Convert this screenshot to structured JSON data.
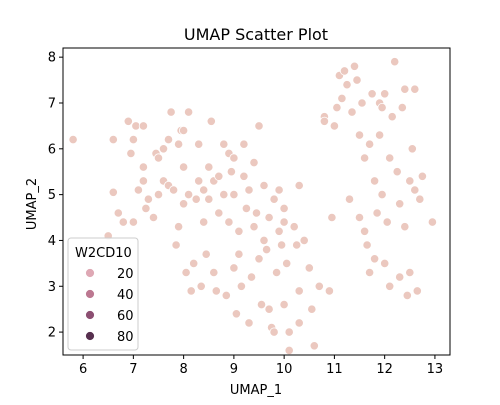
{
  "chart_data": {
    "type": "scatter",
    "title": "UMAP Scatter Plot",
    "xlabel": "UMAP_1",
    "ylabel": "UMAP_2",
    "xlim": [
      5.6,
      13.3
    ],
    "ylim": [
      1.5,
      8.2
    ],
    "xticks": [
      6,
      7,
      8,
      9,
      10,
      11,
      12,
      13
    ],
    "yticks": [
      2,
      3,
      4,
      5,
      6,
      7,
      8
    ],
    "grid": false,
    "legend": {
      "title": "W2CD10",
      "placement": "lower-left",
      "entries": [
        {
          "label": "20",
          "color": "#dea8b4"
        },
        {
          "label": "40",
          "color": "#bc7891"
        },
        {
          "label": "60",
          "color": "#8c4f72"
        },
        {
          "label": "80",
          "color": "#57304f"
        }
      ]
    },
    "point_color": "#ebc8bf",
    "point_edge_color": "#ffffff",
    "points": [
      [
        5.8,
        6.2
      ],
      [
        6.5,
        4.1
      ],
      [
        6.6,
        5.05
      ],
      [
        6.6,
        6.2
      ],
      [
        6.7,
        4.6
      ],
      [
        6.8,
        4.4
      ],
      [
        6.9,
        6.6
      ],
      [
        6.95,
        5.9
      ],
      [
        7.0,
        6.2
      ],
      [
        7.0,
        4.4
      ],
      [
        7.05,
        6.5
      ],
      [
        7.1,
        5.1
      ],
      [
        7.2,
        5.3
      ],
      [
        7.2,
        5.6
      ],
      [
        7.2,
        6.5
      ],
      [
        7.25,
        4.7
      ],
      [
        7.3,
        4.9
      ],
      [
        7.4,
        4.5
      ],
      [
        7.45,
        5.9
      ],
      [
        7.5,
        5.0
      ],
      [
        7.5,
        5.8
      ],
      [
        7.6,
        5.3
      ],
      [
        7.6,
        6.0
      ],
      [
        7.7,
        5.2
      ],
      [
        7.7,
        6.2
      ],
      [
        7.75,
        6.8
      ],
      [
        7.8,
        5.1
      ],
      [
        7.85,
        3.9
      ],
      [
        7.9,
        6.1
      ],
      [
        7.9,
        4.3
      ],
      [
        7.95,
        6.4
      ],
      [
        8.0,
        5.6
      ],
      [
        8.0,
        6.4
      ],
      [
        8.0,
        4.8
      ],
      [
        8.05,
        3.3
      ],
      [
        8.1,
        5.0
      ],
      [
        8.1,
        6.8
      ],
      [
        8.15,
        2.9
      ],
      [
        8.2,
        3.5
      ],
      [
        8.25,
        4.9
      ],
      [
        8.3,
        5.3
      ],
      [
        8.3,
        6.1
      ],
      [
        8.35,
        3.0
      ],
      [
        8.4,
        4.4
      ],
      [
        8.4,
        5.1
      ],
      [
        8.45,
        3.7
      ],
      [
        8.5,
        5.6
      ],
      [
        8.5,
        4.9
      ],
      [
        8.55,
        6.6
      ],
      [
        8.6,
        5.3
      ],
      [
        8.6,
        3.3
      ],
      [
        8.65,
        2.9
      ],
      [
        8.7,
        5.4
      ],
      [
        8.7,
        4.6
      ],
      [
        8.8,
        5.0
      ],
      [
        8.8,
        6.1
      ],
      [
        8.85,
        2.8
      ],
      [
        8.9,
        5.9
      ],
      [
        8.9,
        4.4
      ],
      [
        8.95,
        5.5
      ],
      [
        9.0,
        5.8
      ],
      [
        9.0,
        5.0
      ],
      [
        9.0,
        3.4
      ],
      [
        9.05,
        2.4
      ],
      [
        9.1,
        3.7
      ],
      [
        9.1,
        4.2
      ],
      [
        9.15,
        3.0
      ],
      [
        9.2,
        5.4
      ],
      [
        9.2,
        6.1
      ],
      [
        9.25,
        4.7
      ],
      [
        9.3,
        2.2
      ],
      [
        9.3,
        5.1
      ],
      [
        9.35,
        3.2
      ],
      [
        9.4,
        4.3
      ],
      [
        9.4,
        5.7
      ],
      [
        9.45,
        4.6
      ],
      [
        9.5,
        6.5
      ],
      [
        9.5,
        3.6
      ],
      [
        9.55,
        2.6
      ],
      [
        9.6,
        5.2
      ],
      [
        9.6,
        4.0
      ],
      [
        9.65,
        3.8
      ],
      [
        9.7,
        2.5
      ],
      [
        9.7,
        4.5
      ],
      [
        9.75,
        2.1
      ],
      [
        9.8,
        2.0
      ],
      [
        9.8,
        4.9
      ],
      [
        9.85,
        3.3
      ],
      [
        9.9,
        4.2
      ],
      [
        9.9,
        5.1
      ],
      [
        9.95,
        3.9
      ],
      [
        10.0,
        2.6
      ],
      [
        10.0,
        4.4
      ],
      [
        10.0,
        4.7
      ],
      [
        10.05,
        3.5
      ],
      [
        10.1,
        2.0
      ],
      [
        10.1,
        1.6
      ],
      [
        10.2,
        4.3
      ],
      [
        10.25,
        3.9
      ],
      [
        10.3,
        2.9
      ],
      [
        10.3,
        2.2
      ],
      [
        10.4,
        4.0
      ],
      [
        10.5,
        3.4
      ],
      [
        10.55,
        2.5
      ],
      [
        10.6,
        1.7
      ],
      [
        10.7,
        3.0
      ],
      [
        10.8,
        6.7
      ],
      [
        10.8,
        6.6
      ],
      [
        10.9,
        2.9
      ],
      [
        11.0,
        6.5
      ],
      [
        11.05,
        6.9
      ],
      [
        11.1,
        7.6
      ],
      [
        11.15,
        7.1
      ],
      [
        11.2,
        7.7
      ],
      [
        11.25,
        7.4
      ],
      [
        11.3,
        4.9
      ],
      [
        11.35,
        6.8
      ],
      [
        11.4,
        7.8
      ],
      [
        11.45,
        7.5
      ],
      [
        11.5,
        6.3
      ],
      [
        11.5,
        4.5
      ],
      [
        11.55,
        7.0
      ],
      [
        11.6,
        5.8
      ],
      [
        11.6,
        4.2
      ],
      [
        11.65,
        3.9
      ],
      [
        11.7,
        6.1
      ],
      [
        11.7,
        3.3
      ],
      [
        11.75,
        7.2
      ],
      [
        11.8,
        5.3
      ],
      [
        11.8,
        3.6
      ],
      [
        11.85,
        4.6
      ],
      [
        11.9,
        7.0
      ],
      [
        11.9,
        6.3
      ],
      [
        11.95,
        5.0
      ],
      [
        12.0,
        3.5
      ],
      [
        12.0,
        7.2
      ],
      [
        12.05,
        4.4
      ],
      [
        12.1,
        5.8
      ],
      [
        12.1,
        3.0
      ],
      [
        12.15,
        6.7
      ],
      [
        12.2,
        7.9
      ],
      [
        12.25,
        5.5
      ],
      [
        12.3,
        4.8
      ],
      [
        12.3,
        3.2
      ],
      [
        12.35,
        6.9
      ],
      [
        12.4,
        7.3
      ],
      [
        12.4,
        4.3
      ],
      [
        12.45,
        2.8
      ],
      [
        12.5,
        5.3
      ],
      [
        12.5,
        3.3
      ],
      [
        12.55,
        6.0
      ],
      [
        12.6,
        5.1
      ],
      [
        12.6,
        7.3
      ],
      [
        12.65,
        2.9
      ],
      [
        12.7,
        4.9
      ],
      [
        12.75,
        5.4
      ],
      [
        12.95,
        4.4
      ],
      [
        10.3,
        5.2
      ],
      [
        10.95,
        4.5
      ],
      [
        11.95,
        6.9
      ]
    ]
  }
}
